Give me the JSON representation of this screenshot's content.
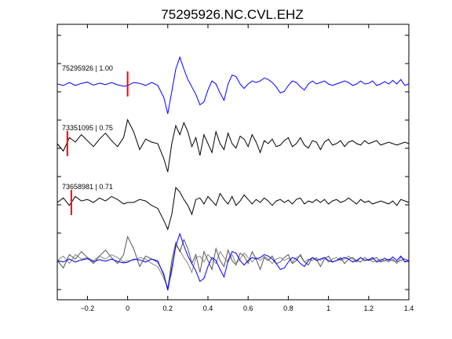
{
  "chart_data": {
    "type": "line",
    "title": "75295926.NC.CVL.EHZ",
    "xlim": [
      -0.35,
      1.4
    ],
    "x_ticks": [
      -0.2,
      0,
      0.2,
      0.4,
      0.6,
      0.8,
      1,
      1.2,
      1.4
    ],
    "x_tick_labels": [
      "−0.2",
      "0",
      "0.2",
      "0.4",
      "0.6",
      "0.8",
      "1",
      "1.2",
      "1.4"
    ],
    "grid": false,
    "legend": "none",
    "traces": [
      {
        "label": "75295926 | 1.00",
        "color": "#0000ff",
        "pick_time": 0.0,
        "pick_color": "#ff0000",
        "x": [
          -0.35,
          -0.32,
          -0.29,
          -0.26,
          -0.23,
          -0.2,
          -0.17,
          -0.14,
          -0.11,
          -0.08,
          -0.05,
          -0.02,
          0.0,
          0.03,
          0.06,
          0.09,
          0.12,
          0.15,
          0.18,
          0.2,
          0.22,
          0.24,
          0.26,
          0.28,
          0.3,
          0.32,
          0.34,
          0.36,
          0.38,
          0.4,
          0.42,
          0.44,
          0.46,
          0.48,
          0.5,
          0.52,
          0.54,
          0.56,
          0.58,
          0.6,
          0.62,
          0.64,
          0.66,
          0.68,
          0.7,
          0.72,
          0.74,
          0.76,
          0.78,
          0.8,
          0.82,
          0.84,
          0.86,
          0.88,
          0.9,
          0.92,
          0.94,
          0.96,
          0.98,
          1.0,
          1.02,
          1.04,
          1.06,
          1.08,
          1.1,
          1.12,
          1.14,
          1.16,
          1.18,
          1.2,
          1.22,
          1.24,
          1.26,
          1.28,
          1.3,
          1.32,
          1.34,
          1.36,
          1.38,
          1.4
        ],
        "y": [
          0,
          -0.05,
          0.05,
          -0.05,
          0.02,
          0.06,
          -0.04,
          0.03,
          -0.02,
          0.05,
          -0.03,
          -0.08,
          -0.06,
          0.05,
          0.02,
          -0.05,
          0.05,
          -0.05,
          -0.45,
          -1.0,
          -0.25,
          0.5,
          0.9,
          0.5,
          0.15,
          -0.1,
          -0.35,
          -0.7,
          -0.6,
          -0.2,
          0.1,
          0.0,
          -0.3,
          -0.55,
          0.0,
          0.3,
          0.25,
          0.0,
          -0.15,
          0.0,
          0.1,
          0.05,
          0.1,
          0.2,
          0.15,
          0.05,
          -0.1,
          -0.3,
          -0.25,
          -0.05,
          0.1,
          0.05,
          -0.1,
          -0.2,
          0.0,
          0.1,
          0.0,
          0.05,
          0.1,
          0.0,
          -0.05,
          0.0,
          0.05,
          0.1,
          0.05,
          -0.05,
          0.0,
          0.1,
          0.0,
          0.02,
          0.1,
          -0.05,
          0.0,
          0.08,
          0.0,
          0.12,
          0.0,
          0.15,
          -0.05,
          0.0
        ]
      },
      {
        "label": "73351095 | 0.75",
        "color": "#000000",
        "pick_time": -0.3,
        "pick_color": "#ff0000",
        "x": [
          -0.35,
          -0.32,
          -0.29,
          -0.26,
          -0.23,
          -0.2,
          -0.17,
          -0.14,
          -0.11,
          -0.08,
          -0.05,
          -0.02,
          0.0,
          0.03,
          0.06,
          0.09,
          0.12,
          0.15,
          0.18,
          0.2,
          0.22,
          0.24,
          0.26,
          0.28,
          0.3,
          0.32,
          0.34,
          0.36,
          0.38,
          0.4,
          0.42,
          0.44,
          0.46,
          0.48,
          0.5,
          0.52,
          0.54,
          0.56,
          0.58,
          0.6,
          0.62,
          0.64,
          0.66,
          0.68,
          0.7,
          0.72,
          0.74,
          0.76,
          0.78,
          0.8,
          0.82,
          0.84,
          0.86,
          0.88,
          0.9,
          0.92,
          0.94,
          0.96,
          0.98,
          1.0,
          1.02,
          1.04,
          1.06,
          1.08,
          1.1,
          1.12,
          1.14,
          1.16,
          1.18,
          1.2,
          1.22,
          1.24,
          1.26,
          1.28,
          1.3,
          1.32,
          1.34,
          1.36,
          1.38,
          1.4
        ],
        "y": [
          0.0,
          -0.25,
          0.2,
          0.05,
          0.3,
          0.1,
          -0.1,
          0.15,
          0.35,
          0.1,
          -0.1,
          0.2,
          0.8,
          0.4,
          -0.2,
          0.15,
          0.05,
          0.0,
          -0.5,
          -0.95,
          0.0,
          0.6,
          0.3,
          0.7,
          0.4,
          -0.1,
          0.2,
          -0.4,
          0.3,
          0.0,
          -0.3,
          0.4,
          0.0,
          -0.2,
          0.35,
          0.0,
          -0.15,
          0.25,
          0.15,
          -0.1,
          0.3,
          0.05,
          -0.3,
          0.1,
          0.0,
          0.15,
          -0.1,
          -0.05,
          0.1,
          0.2,
          -0.1,
          0.0,
          0.2,
          -0.05,
          -0.15,
          0.1,
          0.05,
          -0.2,
          0.05,
          0.15,
          -0.05,
          0.0,
          0.1,
          -0.1,
          0.05,
          0.1,
          0.0,
          -0.05,
          0.1,
          0.0,
          0.05,
          0.1,
          -0.05,
          0.0,
          0.05,
          0.0,
          -0.05,
          0.0,
          0.05,
          0.0
        ]
      },
      {
        "label": "73658981 | 0.71",
        "color": "#000000",
        "pick_time": -0.28,
        "pick_color": "#ff0000",
        "x": [
          -0.35,
          -0.32,
          -0.29,
          -0.26,
          -0.23,
          -0.2,
          -0.17,
          -0.14,
          -0.11,
          -0.08,
          -0.05,
          -0.02,
          0.0,
          0.03,
          0.06,
          0.09,
          0.12,
          0.15,
          0.18,
          0.2,
          0.22,
          0.24,
          0.26,
          0.28,
          0.3,
          0.32,
          0.34,
          0.36,
          0.38,
          0.4,
          0.42,
          0.44,
          0.46,
          0.48,
          0.5,
          0.52,
          0.54,
          0.56,
          0.58,
          0.6,
          0.62,
          0.64,
          0.66,
          0.68,
          0.7,
          0.72,
          0.74,
          0.76,
          0.78,
          0.8,
          0.82,
          0.84,
          0.86,
          0.88,
          0.9,
          0.92,
          0.94,
          0.96,
          0.98,
          1.0,
          1.02,
          1.04,
          1.06,
          1.08,
          1.1,
          1.12,
          1.14,
          1.16,
          1.18,
          1.2,
          1.22,
          1.24,
          1.26,
          1.28,
          1.3,
          1.32,
          1.34,
          1.36,
          1.38,
          1.4
        ],
        "y": [
          0.0,
          0.15,
          -0.1,
          0.2,
          0.05,
          0.1,
          0.0,
          0.15,
          0.05,
          0.2,
          0.1,
          -0.05,
          0.0,
          0.0,
          0.1,
          0.05,
          -0.1,
          -0.2,
          -0.6,
          -0.9,
          -0.4,
          0.5,
          0.35,
          0.1,
          -0.1,
          -0.4,
          0.1,
          0.15,
          -0.05,
          0.2,
          0.05,
          -0.1,
          0.3,
          0.1,
          -0.05,
          0.2,
          -0.1,
          0.05,
          0.25,
          0.1,
          -0.05,
          0.1,
          0.0,
          0.15,
          0.05,
          -0.1,
          0.05,
          0.1,
          0.0,
          0.08,
          -0.05,
          0.1,
          0.15,
          -0.05,
          0.05,
          0.0,
          0.1,
          0.0,
          0.1,
          -0.05,
          0.05,
          0.1,
          0.0,
          0.05,
          0.15,
          0.05,
          -0.05,
          0.1,
          0.0,
          0.05,
          -0.05,
          0.0,
          0.05,
          0.0,
          -0.05,
          0.05,
          -0.1,
          0.1,
          0.05,
          0.0
        ]
      }
    ],
    "overlay": {
      "colors": [
        "#0000ff",
        "#555555",
        "#888888"
      ]
    }
  }
}
